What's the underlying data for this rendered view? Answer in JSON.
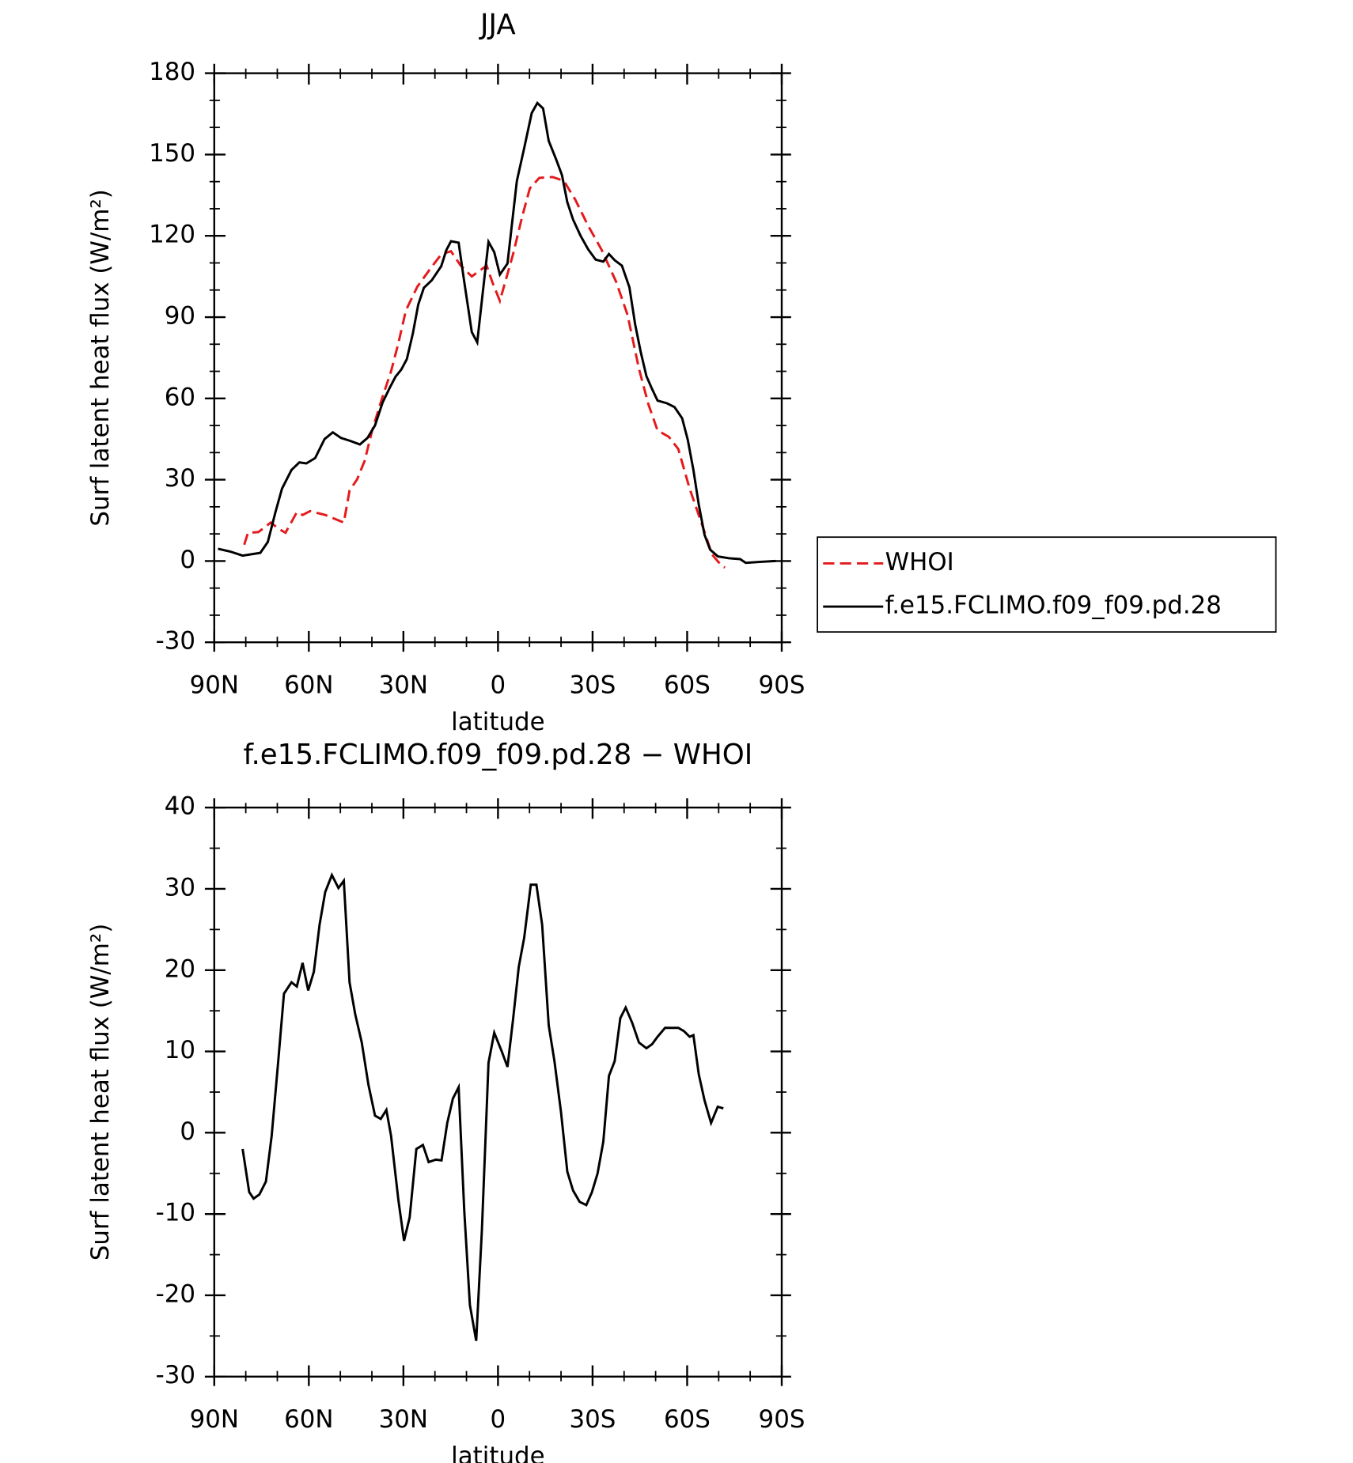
{
  "chart_data": [
    {
      "type": "line",
      "title": "JJA",
      "xlabel": "latitude",
      "ylabel": "Surf latent heat flux (W/m²)",
      "xlim": [
        90,
        -90
      ],
      "xticks": [
        {
          "value": 90,
          "label": "90N"
        },
        {
          "value": 60,
          "label": "60N"
        },
        {
          "value": 30,
          "label": "30N"
        },
        0,
        {
          "value": -30,
          "label": "30S"
        },
        {
          "value": -60,
          "label": "60S"
        },
        {
          "value": -90,
          "label": "90S"
        }
      ],
      "ylim": [
        -30,
        180
      ],
      "yticks": [
        -30,
        0,
        30,
        60,
        90,
        120,
        150,
        180
      ],
      "legend": "outside-right",
      "series": [
        {
          "name": "WHOI",
          "color": "#e41a1c",
          "dash": true,
          "x": [
            80.5,
            79.3,
            76,
            72.1,
            69.7,
            67.4,
            63.8,
            62,
            59.6,
            54.8,
            48.9,
            47.1,
            44.7,
            42.3,
            39.9,
            36.9,
            33.9,
            31.6,
            29.2,
            25.6,
            21.4,
            17.9,
            14.9,
            11.9,
            8.3,
            6,
            3.6,
            1.8,
            -0.6,
            -4.8,
            -7.7,
            -10.1,
            -13.1,
            -17.3,
            -20.9,
            -24.5,
            -28.6,
            -32.8,
            -37.5,
            -41.1,
            -44.7,
            -47.7,
            -50.6,
            -54.2,
            -57.2,
            -60.8,
            -64.9,
            -67.9,
            -70.9,
            -72
          ],
          "values": [
            6,
            10.4,
            10.7,
            14.2,
            12,
            10.4,
            18,
            17,
            18.4,
            17,
            14.2,
            26,
            30.1,
            37,
            48.2,
            59.6,
            70,
            80.4,
            92.5,
            101.2,
            108,
            113.3,
            114.3,
            109.1,
            105,
            107,
            109,
            102.9,
            96,
            113.3,
            127.2,
            137.5,
            141.4,
            141.7,
            140.3,
            133.4,
            123.7,
            115,
            103,
            90.8,
            71,
            57.8,
            48.2,
            45.8,
            41.3,
            26.7,
            12.8,
            2.4,
            -1.7,
            -2.4
          ]
        },
        {
          "name": "f.e15.FCLIMO.f09_f09.pd.28",
          "color": "#000000",
          "dash": false,
          "x": [
            88.8,
            85,
            81,
            75.4,
            73,
            70.6,
            68.5,
            65.5,
            63,
            60.8,
            58,
            55,
            52.4,
            49.8,
            46.8,
            43.8,
            41.4,
            39,
            36.6,
            34.3,
            32.5,
            30.7,
            28.9,
            27,
            25.3,
            23.5,
            21,
            18,
            16.4,
            14.9,
            12.5,
            10.7,
            8.3,
            6.6,
            4.8,
            3,
            1.2,
            -0.6,
            -3,
            -6,
            -8.3,
            -10.7,
            -12.5,
            -14.3,
            -16.1,
            -18.5,
            -20.3,
            -22,
            -23.8,
            -26.2,
            -28.6,
            -31,
            -33.4,
            -35.2,
            -37,
            -39.3,
            -41.7,
            -43.5,
            -45.3,
            -47.1,
            -48.9,
            -50.6,
            -53.6,
            -56,
            -58.4,
            -60.2,
            -62,
            -63.7,
            -65.5,
            -67.3,
            -69.7,
            -73.3,
            -76.8,
            -78.6,
            -83.4,
            -88.1
          ],
          "values": [
            4.5,
            3.5,
            2,
            3,
            7,
            18,
            26.7,
            33.6,
            36.4,
            36,
            38,
            45,
            47.5,
            45.4,
            44.3,
            43,
            45.4,
            50,
            58.5,
            64,
            68,
            70.6,
            74.5,
            84,
            94.6,
            100.8,
            103.6,
            108.8,
            114.7,
            118,
            117.5,
            103,
            84.5,
            80.7,
            99.4,
            117.8,
            114,
            105.7,
            109.8,
            140.3,
            152.4,
            165.3,
            169,
            167,
            155,
            148,
            142.4,
            132.4,
            126,
            120,
            115,
            111.2,
            110.5,
            113.3,
            111,
            109,
            101,
            87.3,
            77,
            68.2,
            63.4,
            59.2,
            58.2,
            56.8,
            52.7,
            44.7,
            33.6,
            20.8,
            9.7,
            4.2,
            1.7,
            1,
            0.7,
            -0.7,
            -0.3,
            0
          ]
        }
      ]
    },
    {
      "type": "line",
      "title": "f.e15.FCLIMO.f09_f09.pd.28 − WHOI",
      "xlabel": "latitude",
      "ylabel": "Surf latent heat flux (W/m²)",
      "xlim": [
        90,
        -90
      ],
      "xticks": [
        {
          "value": 90,
          "label": "90N"
        },
        {
          "value": 60,
          "label": "60N"
        },
        {
          "value": 30,
          "label": "30N"
        },
        0,
        {
          "value": -30,
          "label": "30S"
        },
        {
          "value": -60,
          "label": "60S"
        },
        {
          "value": -90,
          "label": "90S"
        }
      ],
      "ylim": [
        -30,
        40
      ],
      "yticks": [
        -30,
        -20,
        -10,
        0,
        10,
        20,
        30,
        40
      ],
      "series": [
        {
          "color": "#000000",
          "dash": false,
          "x": [
            81,
            78.9,
            77.5,
            75.7,
            73.6,
            71.8,
            69.7,
            67.9,
            65.5,
            63.8,
            62,
            60.2,
            58.4,
            56.6,
            54.8,
            52.7,
            50.6,
            48.9,
            47.1,
            45.3,
            43.2,
            41.1,
            39,
            37.2,
            35.4,
            33.9,
            31.6,
            29.8,
            28,
            25.9,
            23.8,
            22,
            19.7,
            17.9,
            16.1,
            14.3,
            12.5,
            10.7,
            8.9,
            6.9,
            5.1,
            3,
            1.2,
            -1.2,
            -3,
            -4.8,
            -6.6,
            -8.3,
            -10.4,
            -12.2,
            -14,
            -16.1,
            -17.9,
            -20,
            -22,
            -23.8,
            -25.9,
            -28,
            -29.8,
            -31.6,
            -33.4,
            -35.2,
            -37,
            -38.8,
            -40.5,
            -42.6,
            -44.7,
            -47.1,
            -48.9,
            -50.6,
            -53,
            -55.4,
            -57.2,
            -59,
            -60.8,
            -62,
            -63.7,
            -65.5,
            -67.6,
            -69.7,
            -71.5
          ],
          "values": [
            -2,
            -7.3,
            -8.1,
            -7.6,
            -6,
            -0.4,
            8.8,
            17.1,
            18.5,
            18,
            20.9,
            17.5,
            19.8,
            25.6,
            29.6,
            31.7,
            30.1,
            31,
            18.5,
            14.6,
            11.1,
            5.9,
            2.1,
            1.7,
            2.8,
            -0.4,
            -8.3,
            -13.3,
            -10.4,
            -2,
            -1.5,
            -3.6,
            -3.3,
            -3.4,
            1.2,
            4.2,
            5.6,
            -9.6,
            -21.2,
            -25.6,
            -11.9,
            8.6,
            12.3,
            10,
            8.1,
            14,
            20.4,
            24,
            30.5,
            30.5,
            25.6,
            13.2,
            8.8,
            2.5,
            -4.8,
            -7.1,
            -8.5,
            -8.9,
            -7.3,
            -5,
            -1.1,
            7,
            8.8,
            14.1,
            15.4,
            13.5,
            11.1,
            10.4,
            10.9,
            11.8,
            12.9,
            12.9,
            12.9,
            12.5,
            11.8,
            12,
            7.2,
            4,
            1.2,
            3.2,
            3
          ]
        }
      ]
    }
  ]
}
